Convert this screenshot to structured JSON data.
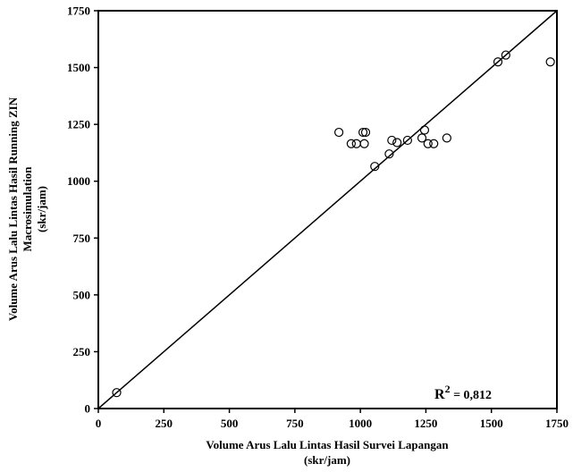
{
  "chart_data": {
    "type": "scatter",
    "xlabel": [
      "Volume Arus Lalu Lintas Hasil Survei Lapangan",
      "(skr/jam)"
    ],
    "ylabel": [
      "Volume Arus Lalu Lintas Hasil Running ZIN",
      "Macrosimulation",
      "(skr/jam)"
    ],
    "xlim": [
      0,
      1750
    ],
    "ylim": [
      0,
      1750
    ],
    "xticks": [
      "0",
      "250",
      "500",
      "750",
      "1000",
      "1250",
      "1500",
      "1750"
    ],
    "yticks": [
      "0",
      "250",
      "500",
      "750",
      "1000",
      "1250",
      "1500",
      "1750"
    ],
    "grid": false,
    "reference_line": "y = x",
    "annotation": {
      "label": "R",
      "sup": "2",
      "value": " = 0,812"
    },
    "colors": {
      "marker_stroke": "#000000",
      "line": "#000000"
    },
    "points": [
      {
        "x": 70,
        "y": 70
      },
      {
        "x": 918,
        "y": 1215
      },
      {
        "x": 965,
        "y": 1165
      },
      {
        "x": 985,
        "y": 1165
      },
      {
        "x": 1010,
        "y": 1215
      },
      {
        "x": 1020,
        "y": 1215
      },
      {
        "x": 1015,
        "y": 1165
      },
      {
        "x": 1055,
        "y": 1065
      },
      {
        "x": 1110,
        "y": 1120
      },
      {
        "x": 1120,
        "y": 1180
      },
      {
        "x": 1140,
        "y": 1170
      },
      {
        "x": 1180,
        "y": 1180
      },
      {
        "x": 1235,
        "y": 1190
      },
      {
        "x": 1245,
        "y": 1225
      },
      {
        "x": 1258,
        "y": 1165
      },
      {
        "x": 1280,
        "y": 1165
      },
      {
        "x": 1330,
        "y": 1190
      },
      {
        "x": 1525,
        "y": 1525
      },
      {
        "x": 1555,
        "y": 1555
      },
      {
        "x": 1725,
        "y": 1525
      }
    ]
  }
}
